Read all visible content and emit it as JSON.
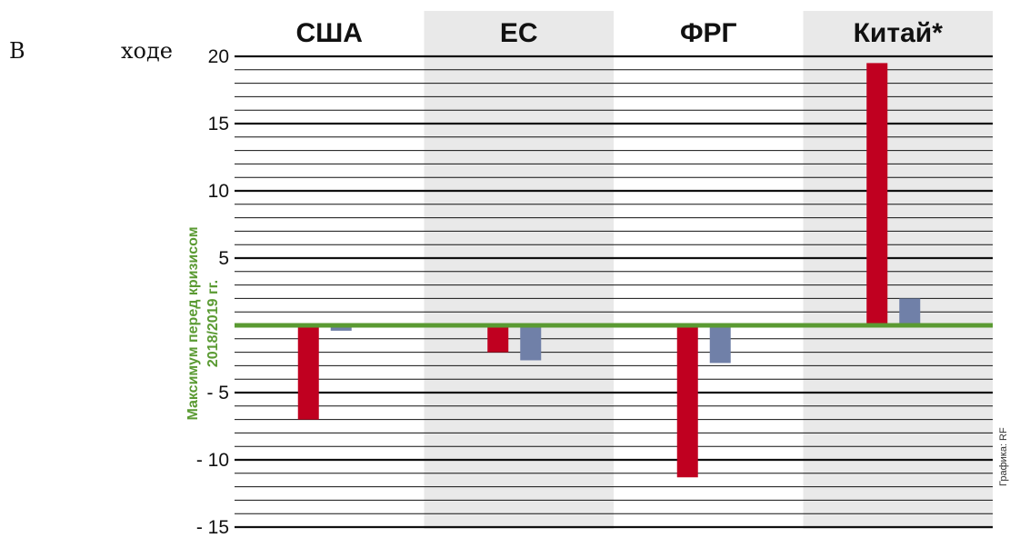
{
  "intro_text": [
    "В",
    "ходе"
  ],
  "credit": "Графика: RF",
  "colors": {
    "shade": "#e9e9e9",
    "red": "#c00020",
    "blue": "#7080a8",
    "baseline": "#5a9a32",
    "grid": "#111111"
  },
  "chart_data": {
    "type": "bar",
    "categories": [
      "США",
      "ЕС",
      "ФРГ",
      "Китай*"
    ],
    "series": [
      {
        "values": [
          -7.0,
          -2.0,
          -11.3,
          19.5
        ]
      },
      {
        "values": [
          -0.4,
          -2.6,
          -2.8,
          2.0
        ]
      }
    ],
    "ylim": [
      -15,
      20
    ],
    "y_ticks": [
      20,
      15,
      10,
      5,
      -5,
      -10,
      -15
    ],
    "y_tick_labels": [
      "20",
      "15",
      "10",
      "5",
      "- 5",
      "- 10",
      "- 15"
    ],
    "baseline_value": 0,
    "baseline_label": [
      "Максимум перед кризисом",
      "2018/2019 гг."
    ],
    "shaded_categories": [
      1,
      3
    ],
    "minor_step": 1,
    "grid": true
  }
}
